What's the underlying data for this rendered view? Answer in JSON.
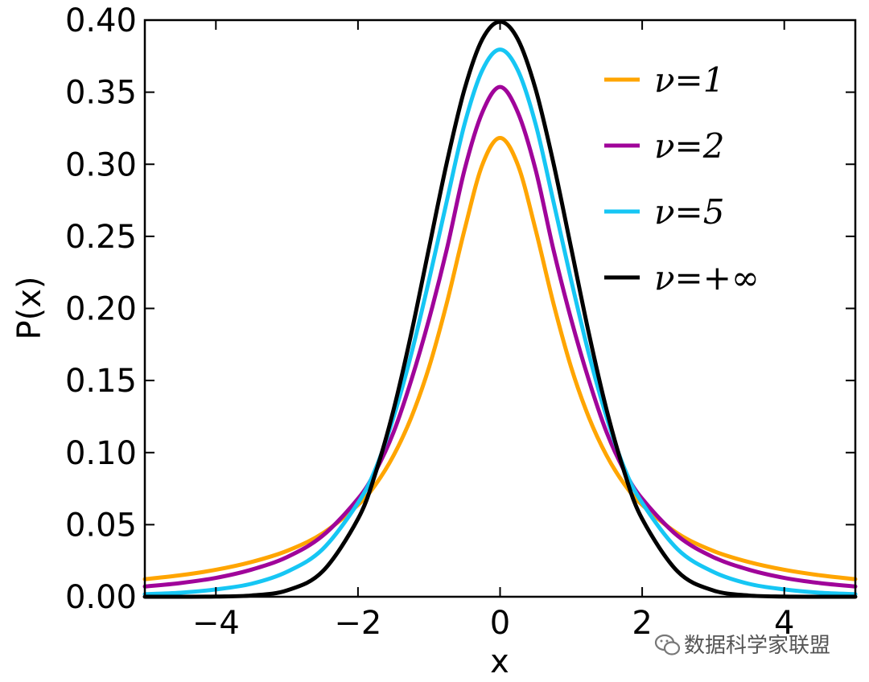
{
  "chart_data": {
    "type": "line",
    "xlabel": "x",
    "ylabel": "P(x)",
    "xlim": [
      -5,
      5
    ],
    "ylim": [
      0,
      0.4
    ],
    "xticks": [
      {
        "value": -4,
        "label": "−4"
      },
      {
        "value": -2,
        "label": "−2"
      },
      {
        "value": 0,
        "label": "0"
      },
      {
        "value": 2,
        "label": "2"
      },
      {
        "value": 4,
        "label": "4"
      }
    ],
    "yticks": [
      {
        "value": 0.0,
        "label": "0.00"
      },
      {
        "value": 0.05,
        "label": "0.05"
      },
      {
        "value": 0.1,
        "label": "0.10"
      },
      {
        "value": 0.15,
        "label": "0.15"
      },
      {
        "value": 0.2,
        "label": "0.20"
      },
      {
        "value": 0.25,
        "label": "0.25"
      },
      {
        "value": 0.3,
        "label": "0.30"
      },
      {
        "value": 0.35,
        "label": "0.35"
      },
      {
        "value": 0.4,
        "label": "0.40"
      }
    ],
    "x": [
      -5,
      -4.5,
      -4,
      -3.5,
      -3,
      -2.5,
      -2,
      -1.75,
      -1.5,
      -1.25,
      -1,
      -0.75,
      -0.5,
      -0.25,
      0,
      0.25,
      0.5,
      0.75,
      1,
      1.25,
      1.5,
      1.75,
      2,
      2.5,
      3,
      3.5,
      4,
      4.5,
      5
    ],
    "series": [
      {
        "name": "ν=1",
        "color": "#ffa500",
        "values": [
          0.0122,
          0.0149,
          0.0187,
          0.0241,
          0.0318,
          0.0439,
          0.0637,
          0.078,
          0.0979,
          0.1244,
          0.1592,
          0.2037,
          0.2546,
          0.2996,
          0.3183,
          0.2996,
          0.2546,
          0.2037,
          0.1592,
          0.1244,
          0.0979,
          0.078,
          0.0637,
          0.0439,
          0.0318,
          0.0241,
          0.0187,
          0.0149,
          0.0122
        ]
      },
      {
        "name": "ν=2",
        "color": "#a0049a",
        "values": [
          0.0071,
          0.0095,
          0.0131,
          0.0188,
          0.0275,
          0.0422,
          0.068,
          0.0873,
          0.114,
          0.1502,
          0.1925,
          0.241,
          0.2962,
          0.336,
          0.3536,
          0.336,
          0.2962,
          0.241,
          0.1925,
          0.1502,
          0.114,
          0.0873,
          0.068,
          0.0422,
          0.0275,
          0.0188,
          0.0131,
          0.0095,
          0.0071
        ]
      },
      {
        "name": "ν=5",
        "color": "#16c6f4",
        "values": [
          0.0018,
          0.0028,
          0.0051,
          0.009,
          0.0173,
          0.0329,
          0.0651,
          0.0891,
          0.1245,
          0.1684,
          0.2197,
          0.2744,
          0.3279,
          0.3652,
          0.3796,
          0.3652,
          0.3279,
          0.2744,
          0.2197,
          0.1684,
          0.1245,
          0.0891,
          0.0651,
          0.0329,
          0.0173,
          0.009,
          0.0051,
          0.0028,
          0.0018
        ]
      },
      {
        "name": "ν=+∞",
        "color": "#000000",
        "values": [
          1.5e-06,
          1.6e-05,
          0.00013,
          0.00087,
          0.0044,
          0.0175,
          0.054,
          0.0863,
          0.1295,
          0.1826,
          0.242,
          0.3011,
          0.3521,
          0.3867,
          0.3989,
          0.3867,
          0.3521,
          0.3011,
          0.242,
          0.1826,
          0.1295,
          0.0863,
          0.054,
          0.0175,
          0.0044,
          0.00087,
          0.00013,
          1.6e-05,
          1.5e-06
        ]
      }
    ],
    "legend": {
      "placement": "top-right",
      "entries": [
        {
          "label": "ν=1",
          "color": "#ffa500"
        },
        {
          "label": "ν=2",
          "color": "#a0049a"
        },
        {
          "label": "ν=5",
          "color": "#16c6f4"
        },
        {
          "label": "ν=+∞",
          "color": "#000000"
        }
      ]
    },
    "grid": false
  },
  "watermark": {
    "text": "数据科学家联盟",
    "icon": "wechat-icon"
  }
}
